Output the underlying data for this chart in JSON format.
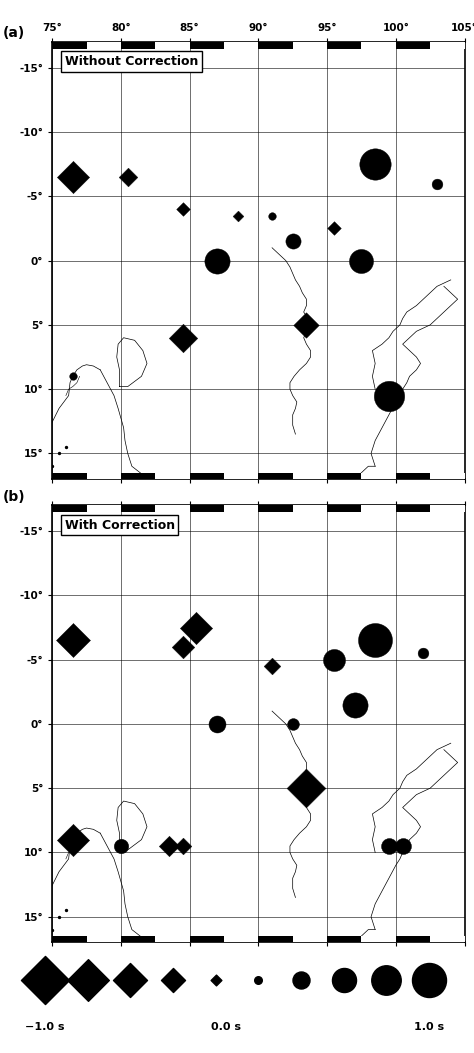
{
  "lon_min": 75,
  "lon_max": 105,
  "lat_min": -17,
  "lat_max": 17,
  "lon_ticks": [
    75,
    80,
    85,
    90,
    95,
    100,
    105
  ],
  "lat_ticks": [
    -15,
    -10,
    -5,
    0,
    5,
    10,
    15
  ],
  "panel_a_label": "Without Correction",
  "panel_b_label": "With Correction",
  "stations_a": [
    {
      "lon": 76.5,
      "lat": 9.0,
      "value": 0.05,
      "neg": false
    },
    {
      "lon": 76.5,
      "lat": -6.5,
      "value": -0.45,
      "neg": true
    },
    {
      "lon": 80.5,
      "lat": -6.5,
      "value": -0.15,
      "neg": true
    },
    {
      "lon": 84.5,
      "lat": 6.0,
      "value": -0.35,
      "neg": true
    },
    {
      "lon": 84.5,
      "lat": -4.0,
      "value": -0.08,
      "neg": true
    },
    {
      "lon": 87.0,
      "lat": 0.0,
      "value": 0.55,
      "neg": false
    },
    {
      "lon": 88.5,
      "lat": -3.5,
      "value": -0.05,
      "neg": true
    },
    {
      "lon": 91.0,
      "lat": -3.5,
      "value": 0.05,
      "neg": false
    },
    {
      "lon": 92.5,
      "lat": -1.5,
      "value": 0.2,
      "neg": false
    },
    {
      "lon": 93.5,
      "lat": 5.0,
      "value": -0.28,
      "neg": true
    },
    {
      "lon": 95.5,
      "lat": -2.5,
      "value": -0.08,
      "neg": true
    },
    {
      "lon": 97.5,
      "lat": 0.0,
      "value": 0.5,
      "neg": false
    },
    {
      "lon": 98.5,
      "lat": -7.5,
      "value": 0.85,
      "neg": false
    },
    {
      "lon": 99.5,
      "lat": 10.5,
      "value": 0.8,
      "neg": false
    },
    {
      "lon": 103.0,
      "lat": -6.0,
      "value": 0.1,
      "neg": false
    }
  ],
  "stations_b": [
    {
      "lon": 76.5,
      "lat": 9.0,
      "value": -0.45,
      "neg": true
    },
    {
      "lon": 76.5,
      "lat": -6.5,
      "value": -0.5,
      "neg": true
    },
    {
      "lon": 80.0,
      "lat": 9.5,
      "value": 0.18,
      "neg": false
    },
    {
      "lon": 83.5,
      "lat": 9.5,
      "value": -0.18,
      "neg": true
    },
    {
      "lon": 84.5,
      "lat": 9.5,
      "value": -0.12,
      "neg": true
    },
    {
      "lon": 84.5,
      "lat": -6.0,
      "value": -0.22,
      "neg": true
    },
    {
      "lon": 85.5,
      "lat": -7.5,
      "value": -0.45,
      "neg": true
    },
    {
      "lon": 87.0,
      "lat": 0.0,
      "value": 0.25,
      "neg": false
    },
    {
      "lon": 91.0,
      "lat": -4.5,
      "value": -0.12,
      "neg": true
    },
    {
      "lon": 92.5,
      "lat": 0.0,
      "value": 0.12,
      "neg": false
    },
    {
      "lon": 93.5,
      "lat": 5.0,
      "value": -0.65,
      "neg": true
    },
    {
      "lon": 95.5,
      "lat": -5.0,
      "value": 0.42,
      "neg": false
    },
    {
      "lon": 97.0,
      "lat": -1.5,
      "value": 0.55,
      "neg": false
    },
    {
      "lon": 98.5,
      "lat": -6.5,
      "value": 1.0,
      "neg": false
    },
    {
      "lon": 99.5,
      "lat": 9.5,
      "value": 0.22,
      "neg": false
    },
    {
      "lon": 100.5,
      "lat": 9.5,
      "value": 0.22,
      "neg": false
    },
    {
      "lon": 102.0,
      "lat": -5.5,
      "value": 0.1,
      "neg": false
    }
  ],
  "max_marker_size": 600,
  "scale_values": [
    -1.0,
    -0.75,
    -0.5,
    -0.25,
    -0.05,
    0.05,
    0.25,
    0.5,
    0.75,
    1.0
  ]
}
